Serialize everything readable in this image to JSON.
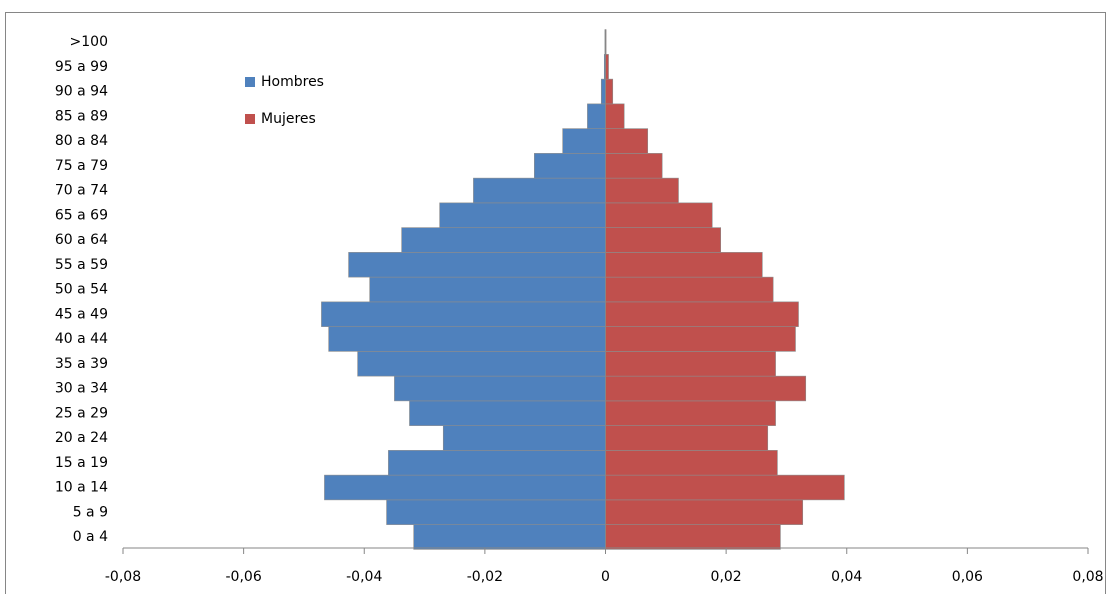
{
  "chart_data": {
    "type": "pyramid",
    "categories": [
      "0 a 4",
      "5 a 9",
      "10 a 14",
      "15 a 19",
      "20 a 24",
      "25 a 29",
      "30 a 34",
      "35 a 39",
      "40 a 44",
      "45 a 49",
      "50 a 54",
      "55 a 59",
      "60 a 64",
      "65 a 69",
      "70 a 74",
      "75 a 79",
      "80 a 84",
      "85 a 89",
      "90 a 94",
      "95 a 99",
      ">100"
    ],
    "series": [
      {
        "name": "Hombres",
        "color": "#4f81bd",
        "values": [
          -0.0318,
          -0.0363,
          -0.0466,
          -0.036,
          -0.0269,
          -0.0325,
          -0.035,
          -0.0411,
          -0.0459,
          -0.0471,
          -0.0391,
          -0.0426,
          -0.0338,
          -0.0275,
          -0.0219,
          -0.0118,
          -0.0071,
          -0.003,
          -0.0007,
          -0.0002,
          -0.0001
        ]
      },
      {
        "name": "Mujeres",
        "color": "#c0504d",
        "values": [
          0.029,
          0.0327,
          0.0396,
          0.0285,
          0.0269,
          0.0282,
          0.0332,
          0.0282,
          0.0315,
          0.032,
          0.0278,
          0.026,
          0.0191,
          0.0177,
          0.0121,
          0.0094,
          0.007,
          0.0031,
          0.0012,
          0.0005,
          0.0001
        ]
      }
    ],
    "xlim": [
      -0.08,
      0.08
    ],
    "xticks": [
      {
        "value": -0.08,
        "label": "-0,08"
      },
      {
        "value": -0.06,
        "label": "-0,06"
      },
      {
        "value": -0.04,
        "label": "-0,04"
      },
      {
        "value": -0.02,
        "label": "-0,02"
      },
      0,
      {
        "value": 0.02,
        "label": "0,02"
      },
      {
        "value": 0.04,
        "label": "0,04"
      },
      {
        "value": 0.06,
        "label": "0,06"
      },
      {
        "value": 0.08,
        "label": "0,08"
      }
    ],
    "legend": "upper-left"
  }
}
